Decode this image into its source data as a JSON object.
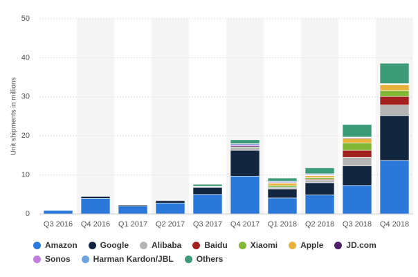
{
  "chart_data": {
    "type": "stacked_bar",
    "y_label": "Unit shipments in millions",
    "categories": [
      "Q3 2016",
      "Q4 2016",
      "Q1 2017",
      "Q2 2017",
      "Q3 2017",
      "Q4 2017",
      "Q1 2018",
      "Q2 2018",
      "Q3 2018",
      "Q4 2018"
    ],
    "series": [
      {
        "name": "Amazon",
        "color": "#2a78d9",
        "values": [
          0.9,
          4.0,
          2.0,
          2.8,
          5.0,
          9.7,
          4.1,
          4.9,
          7.3,
          13.7
        ]
      },
      {
        "name": "Google",
        "color": "#13263f",
        "values": [
          0,
          0.5,
          0.3,
          0.6,
          1.8,
          6.6,
          2.3,
          3.1,
          5.0,
          11.5
        ]
      },
      {
        "name": "Alibaba",
        "color": "#b5b5b5",
        "values": [
          0,
          0,
          0,
          0.2,
          0.2,
          0.6,
          0.5,
          0.7,
          2.2,
          2.7
        ]
      },
      {
        "name": "Baidu",
        "color": "#a3201f",
        "values": [
          0,
          0,
          0,
          0,
          0,
          0,
          0,
          0.2,
          1.8,
          2.2
        ]
      },
      {
        "name": "Xiaomi",
        "color": "#82b836",
        "values": [
          0,
          0,
          0,
          0,
          0.1,
          0.2,
          0.4,
          0.4,
          1.9,
          1.5
        ]
      },
      {
        "name": "Apple",
        "color": "#e9b33b",
        "values": [
          0,
          0,
          0,
          0,
          0,
          0,
          0.6,
          0.5,
          1.1,
          1.5
        ]
      },
      {
        "name": "JD.com",
        "color": "#4f2068",
        "values": [
          0,
          0,
          0,
          0,
          0,
          0.3,
          0.1,
          0.1,
          0.2,
          0.1
        ]
      },
      {
        "name": "Sonos",
        "color": "#c07ddb",
        "values": [
          0,
          0,
          0,
          0,
          0,
          0.3,
          0.2,
          0.2,
          0.1,
          0.1
        ]
      },
      {
        "name": "Harman Kardon/JBL",
        "color": "#6fa3e0",
        "values": [
          0,
          0,
          0,
          0,
          0,
          0.3,
          0.2,
          0.2,
          0.1,
          0.1
        ]
      },
      {
        "name": "Others",
        "color": "#3b9a77",
        "values": [
          0,
          0,
          0.1,
          0.1,
          0.5,
          1.0,
          0.8,
          1.5,
          3.2,
          5.2
        ]
      }
    ],
    "ylim": [
      0,
      50
    ],
    "yticks": [
      0,
      10,
      20,
      30,
      40,
      50
    ],
    "grid": true
  }
}
